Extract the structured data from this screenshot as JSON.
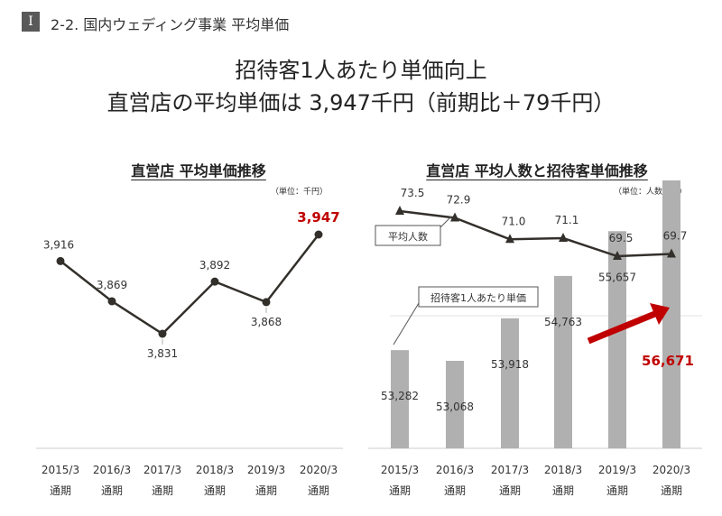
{
  "section": {
    "badge": "Ⅰ",
    "title": "2-2. 国内ウェディング事業 平均単価"
  },
  "headline": {
    "line1": "招待客1人あたり単価向上",
    "line2": "直営店の平均単価は 3,947千円（前期比＋79千円）"
  },
  "colors": {
    "line": "#33302b",
    "bar": "#b0b0b0",
    "accent": "#c00000",
    "axis": "#cccccc"
  },
  "chart_data": [
    {
      "type": "line",
      "title": "直営店 平均単価推移",
      "unit": "（単位：千円）",
      "categories": [
        "2015/3\n通期",
        "2016/3\n通期",
        "2017/3\n通期",
        "2018/3\n通期",
        "2019/3\n通期",
        "2020/3\n通期"
      ],
      "values": [
        3916,
        3869,
        3831,
        3892,
        3868,
        3947
      ],
      "labels": [
        "3,916",
        "3,869",
        "3,831",
        "3,892",
        "3,868",
        "3,947"
      ],
      "highlight_index": 5
    },
    {
      "type": "bar+line",
      "title": "直営店 平均人数と招待客単価推移",
      "unit": "（単位：人数、円）",
      "categories": [
        "2015/3\n通期",
        "2016/3\n通期",
        "2017/3\n通期",
        "2018/3\n通期",
        "2019/3\n通期",
        "2020/3\n通期"
      ],
      "series": [
        {
          "name": "招待客1人あたり単価",
          "kind": "bar",
          "values": [
            53282,
            53068,
            53918,
            54763,
            55657,
            56671
          ],
          "labels": [
            "53,282",
            "53,068",
            "53,918",
            "54,763",
            "55,657",
            "56,671"
          ]
        },
        {
          "name": "平均人数",
          "kind": "line",
          "values": [
            73.5,
            72.9,
            71.0,
            71.1,
            69.5,
            69.7
          ],
          "labels": [
            "73.5",
            "72.9",
            "71.0",
            "71.1",
            "69.5",
            "69.7"
          ]
        }
      ],
      "highlight_index": 5
    }
  ]
}
